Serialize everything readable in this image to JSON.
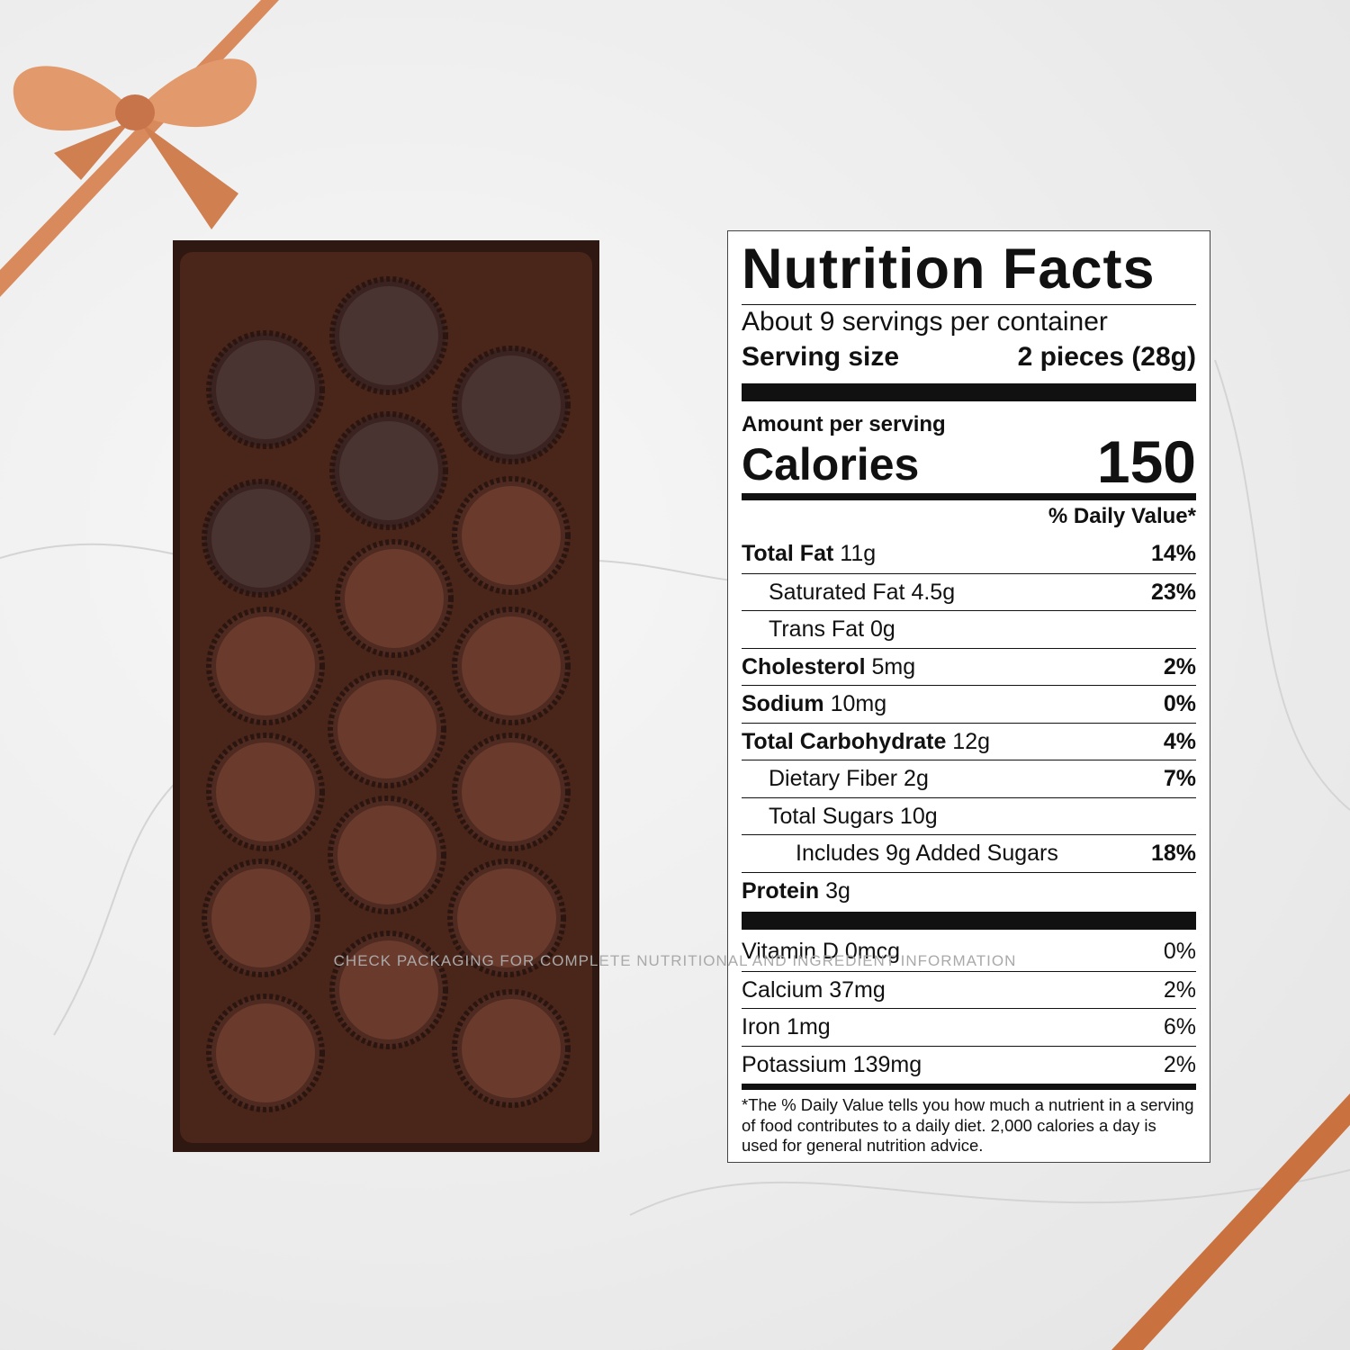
{
  "nutrition_facts": {
    "title": "Nutrition Facts",
    "servings": "About 9 servings per container",
    "serving_size_label": "Serving size",
    "serving_size_value": "2 pieces (28g)",
    "amount_per_serving": "Amount per serving",
    "calories_label": "Calories",
    "calories_value": "150",
    "daily_value_header": "% Daily Value*",
    "nutrients": [
      {
        "name": "Total Fat",
        "amount": "11g",
        "dv": "14%"
      },
      {
        "name": "Saturated Fat",
        "amount": "4.5g",
        "dv": "23%"
      },
      {
        "name": "Trans Fat",
        "amount": "0g"
      },
      {
        "name": "Cholesterol",
        "amount": "5mg",
        "dv": "2%"
      },
      {
        "name": "Sodium",
        "amount": "10mg",
        "dv": "0%"
      },
      {
        "name": "Total Carbohydrate",
        "amount": "12g",
        "dv": "4%"
      },
      {
        "name": "Dietary Fiber",
        "amount": "2g",
        "dv": "7%"
      },
      {
        "name": "Total Sugars",
        "amount": "10g"
      },
      {
        "name": "Includes 9g Added Sugars",
        "dv": "18%"
      },
      {
        "name": "Protein",
        "amount": "3g"
      }
    ],
    "vitamins": [
      {
        "name": "Vitamin D",
        "amount": "0mcg",
        "dv": "0%"
      },
      {
        "name": "Calcium",
        "amount": "37mg",
        "dv": "2%"
      },
      {
        "name": "Iron",
        "amount": "1mg",
        "dv": "6%"
      },
      {
        "name": "Potassium",
        "amount": "139mg",
        "dv": "2%"
      }
    ],
    "footnote": "*The % Daily Value tells you how much a nutrient in a serving of food contributes to a daily diet. 2,000 calories a day is used for general nutrition advice."
  },
  "footer": "CHECK PACKAGING FOR COMPLETE NUTRITIONAL AND INGREDIENT INFORMATION"
}
